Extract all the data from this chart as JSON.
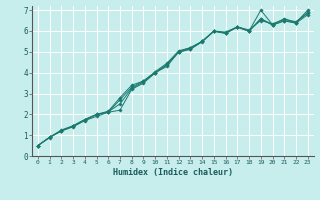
{
  "xlabel": "Humidex (Indice chaleur)",
  "ylabel": "",
  "background_color": "#c8eded",
  "grid_color": "#ffffff",
  "line_color": "#1a7a6e",
  "xlim": [
    -0.5,
    23.5
  ],
  "ylim": [
    0,
    7.2
  ],
  "xticks": [
    0,
    1,
    2,
    3,
    4,
    5,
    6,
    7,
    8,
    9,
    10,
    11,
    12,
    13,
    14,
    15,
    16,
    17,
    18,
    19,
    20,
    21,
    22,
    23
  ],
  "yticks": [
    0,
    1,
    2,
    3,
    4,
    5,
    6,
    7
  ],
  "series": [
    {
      "x": [
        0,
        1,
        2,
        3,
        4,
        5,
        6,
        7,
        8,
        9,
        10,
        11,
        12,
        13,
        14,
        15,
        16,
        17,
        18,
        19,
        20,
        21,
        22,
        23
      ],
      "y": [
        0.5,
        0.9,
        1.2,
        1.4,
        1.7,
        1.9,
        2.1,
        2.2,
        3.2,
        3.5,
        4.0,
        4.3,
        5.0,
        5.2,
        5.5,
        6.0,
        5.9,
        6.2,
        6.0,
        6.6,
        6.3,
        6.6,
        6.4,
        7.0
      ]
    },
    {
      "x": [
        0,
        1,
        2,
        3,
        4,
        5,
        6,
        7,
        8,
        9,
        10,
        11,
        12,
        13,
        14,
        15,
        16,
        17,
        18,
        19,
        20,
        21,
        22,
        23
      ],
      "y": [
        0.5,
        0.9,
        1.2,
        1.45,
        1.75,
        2.0,
        2.1,
        2.7,
        3.3,
        3.6,
        4.0,
        4.4,
        5.0,
        5.15,
        5.5,
        6.0,
        5.9,
        6.2,
        6.0,
        7.0,
        6.3,
        6.5,
        6.4,
        6.9
      ]
    },
    {
      "x": [
        0,
        1,
        2,
        3,
        4,
        5,
        6,
        7,
        8,
        9,
        10,
        11,
        12,
        13,
        14,
        15,
        16,
        17,
        18,
        19,
        20,
        21,
        22,
        23
      ],
      "y": [
        0.5,
        0.9,
        1.25,
        1.45,
        1.75,
        2.0,
        2.15,
        2.8,
        3.4,
        3.6,
        4.05,
        4.45,
        5.05,
        5.2,
        5.5,
        6.0,
        5.95,
        6.2,
        6.05,
        6.5,
        6.35,
        6.55,
        6.45,
        6.85
      ]
    },
    {
      "x": [
        0,
        1,
        2,
        3,
        4,
        5,
        6,
        7,
        8,
        9,
        10,
        11,
        12,
        13,
        14,
        15,
        16,
        17,
        18,
        19,
        20,
        21,
        22,
        23
      ],
      "y": [
        0.5,
        0.88,
        1.22,
        1.42,
        1.72,
        1.98,
        2.12,
        2.5,
        3.25,
        3.55,
        3.98,
        4.38,
        4.98,
        5.12,
        5.48,
        5.98,
        5.88,
        6.18,
        5.98,
        6.58,
        6.28,
        6.48,
        6.38,
        6.78
      ]
    }
  ]
}
